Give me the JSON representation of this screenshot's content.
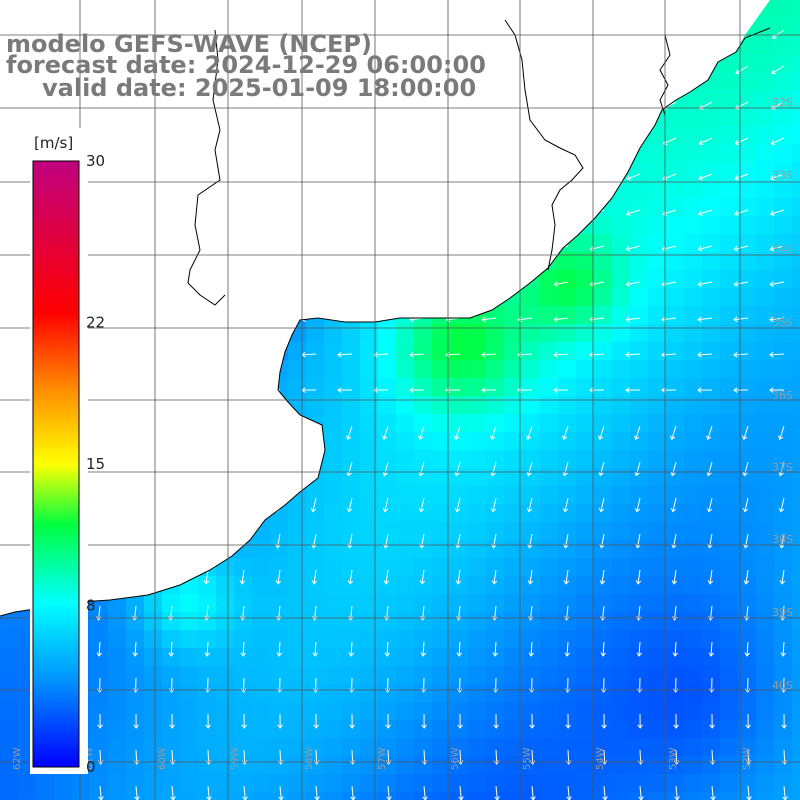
{
  "title": {
    "model": "modelo GEFS-WAVE (NCEP)",
    "forecast": "forecast date: 2024-12-29 06:00:00",
    "valid": "valid date: 2025-01-09 18:00:00"
  },
  "colorbar": {
    "unit": "[m/s]",
    "ticks": [
      {
        "label": "30",
        "value": 30
      },
      {
        "label": "22",
        "value": 22
      },
      {
        "label": "15",
        "value": 15
      },
      {
        "label": "8",
        "value": 8
      },
      {
        "label": "0",
        "value": 0
      }
    ],
    "range": [
      0,
      30
    ],
    "colors": [
      "#0000ff",
      "#00aaff",
      "#00ffff",
      "#00ff00",
      "#ffff00",
      "#ff8000",
      "#ff0000",
      "#c00080"
    ]
  },
  "map": {
    "variable": "wind speed and direction",
    "grid_lines": true,
    "lat_labels": [
      "32S",
      "33S",
      "34S",
      "35S",
      "36S",
      "37S",
      "38S",
      "39S",
      "40S"
    ],
    "lon_labels": [
      "62W",
      "61W",
      "60W",
      "59W",
      "58W",
      "57W",
      "56W",
      "55W",
      "54W",
      "53W",
      "52W"
    ],
    "land_color": "#ffffff",
    "coastline_color": "#000000",
    "arrow_color": "#ffffff",
    "prevailing_wind": "from the north-east"
  }
}
